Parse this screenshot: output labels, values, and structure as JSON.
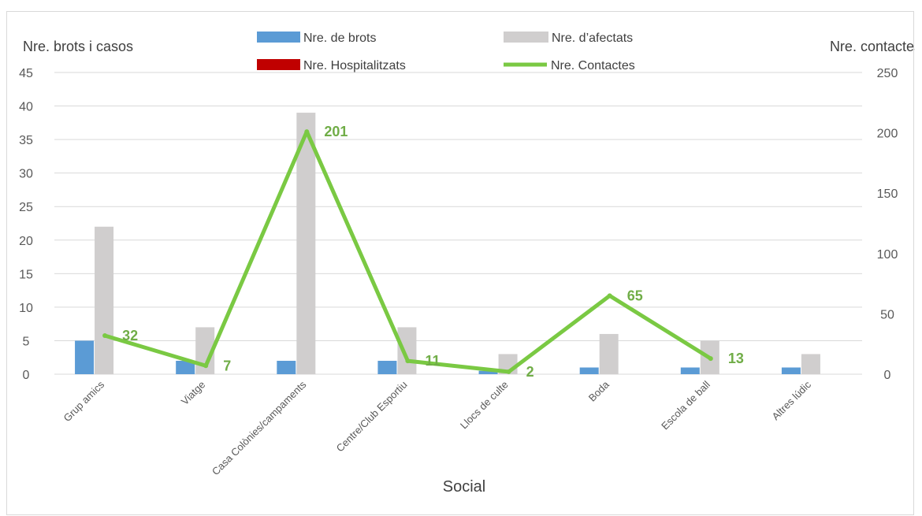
{
  "chart_data": {
    "type": "bar",
    "xlabel": "Social",
    "ylabel_left": "Nre. brots i casos",
    "ylabel_right": "Nre. contactes",
    "ylim_left": [
      0,
      45
    ],
    "yticks_left": [
      0,
      5,
      10,
      15,
      20,
      25,
      30,
      35,
      40,
      45
    ],
    "ylim_right": [
      0,
      250
    ],
    "yticks_right": [
      0,
      50,
      100,
      150,
      200,
      250
    ],
    "grid": true,
    "legend_position": "top",
    "categories": [
      "Grup amics",
      "Viatge",
      "Casa Colònies/campaments",
      "Centre/Club Esportiu",
      "Llocs de culte",
      "Boda",
      "Escola de ball",
      "Altres lúdic"
    ],
    "series": [
      {
        "name": "Nre. de brots",
        "type": "bar",
        "axis": "left",
        "color": "#5b9bd5",
        "values": [
          5,
          2,
          2,
          2,
          0.5,
          1,
          1,
          1
        ]
      },
      {
        "name": "Nre. d’afectats",
        "type": "bar",
        "axis": "left",
        "color": "#d0cece",
        "values": [
          22,
          7,
          39,
          7,
          3,
          6,
          5,
          3
        ]
      },
      {
        "name": "Nre. Hospitalitzats",
        "type": "bar",
        "axis": "left",
        "color": "#c00000",
        "values": [
          0,
          0,
          0,
          0,
          0,
          0,
          0,
          0
        ]
      },
      {
        "name": "Nre. Contactes",
        "type": "line",
        "axis": "right",
        "color": "#7ac943",
        "values": [
          32,
          7,
          201,
          11,
          2,
          65,
          13,
          null
        ],
        "labels": [
          "32",
          "7",
          "201",
          "11",
          "2",
          "65",
          "13",
          null
        ]
      }
    ]
  }
}
